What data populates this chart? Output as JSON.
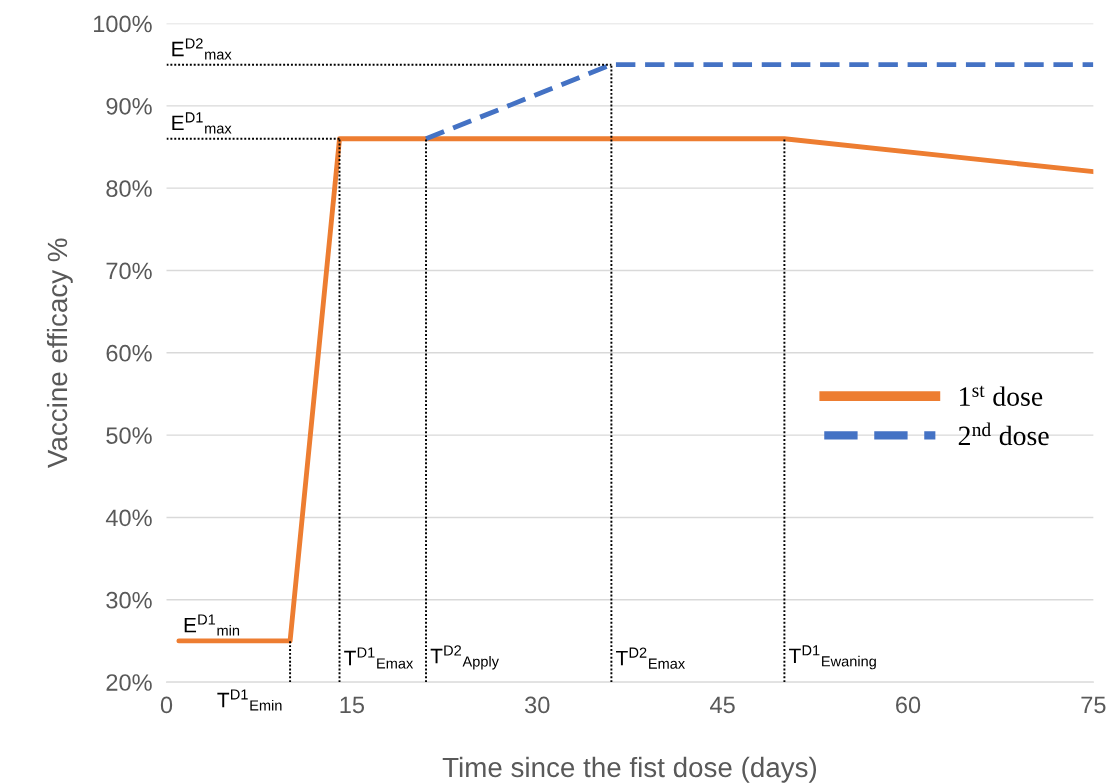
{
  "chart_data": {
    "type": "line",
    "xlabel": "Time since the fist dose (days)",
    "ylabel": "Vaccine efficacy %",
    "xlim": [
      0,
      75
    ],
    "xticks": [
      0,
      15,
      30,
      45,
      60,
      75
    ],
    "ylim": [
      20,
      100
    ],
    "yticks": [
      {
        "value": 20,
        "label": "20%"
      },
      {
        "value": 30,
        "label": "30%"
      },
      {
        "value": 40,
        "label": "40%"
      },
      {
        "value": 50,
        "label": "50%"
      },
      {
        "value": 60,
        "label": "60%"
      },
      {
        "value": 70,
        "label": "70%"
      },
      {
        "value": 80,
        "label": "80%"
      },
      {
        "value": 90,
        "label": "90%"
      },
      {
        "value": 100,
        "label": "100%"
      }
    ],
    "grid": "y",
    "legend": "right",
    "series": [
      {
        "name": "1$^{st}$ dose",
        "color": "#ed7d31",
        "line_style": "solid",
        "x": [
          1,
          10,
          14,
          50,
          75
        ],
        "values": [
          25,
          25,
          86,
          86,
          82
        ]
      },
      {
        "name": "2$^{nd}$ dose",
        "color": "#4472c4",
        "line_style": "dashed",
        "x": [
          21,
          36,
          75
        ],
        "values": [
          86,
          95,
          95
        ]
      },
      {
        "color": "#000000",
        "line_style": "dotted",
        "x": [
          0,
          14
        ],
        "values": [
          86,
          86
        ]
      },
      {
        "color": "#000000",
        "line_style": "dotted",
        "x": [
          0,
          36
        ],
        "values": [
          95,
          95
        ]
      },
      {
        "color": "#000000",
        "line_style": "dotted",
        "x": [
          10,
          10
        ],
        "values": [
          20,
          25
        ]
      },
      {
        "color": "#000000",
        "line_style": "dotted",
        "x": [
          14,
          14
        ],
        "values": [
          20,
          86
        ]
      },
      {
        "color": "#000000",
        "line_style": "dotted",
        "x": [
          21,
          21
        ],
        "values": [
          20,
          86
        ]
      },
      {
        "color": "#000000",
        "line_style": "dotted",
        "x": [
          36,
          36
        ],
        "values": [
          20,
          95
        ]
      },
      {
        "color": "#000000",
        "line_style": "dotted",
        "x": [
          50,
          50
        ],
        "values": [
          20,
          86
        ]
      }
    ],
    "annotations": [
      {
        "text": "E$^{D2}$$_{max}$",
        "x": 0,
        "y": 95
      },
      {
        "text": "E$^{D1}$$_{max}$",
        "x": 0,
        "y": 86
      },
      {
        "text": "E$^{D1}$$_{min}$",
        "x": 1,
        "y": 25
      },
      {
        "text": "T$^{D1}$$_{Emin}$",
        "x": 10,
        "y": 20
      },
      {
        "text": "T$^{D1}$$_{Emax}$",
        "x": 14,
        "y": 21
      },
      {
        "text": "T$^{D2}$$_{Apply}$",
        "x": 21,
        "y": 21
      },
      {
        "text": "T$^{D2}$$_{Emax}$",
        "x": 36,
        "y": 21
      },
      {
        "text": "T$^{D1}$$_{Ewaning}$",
        "x": 50,
        "y": 21
      }
    ]
  }
}
